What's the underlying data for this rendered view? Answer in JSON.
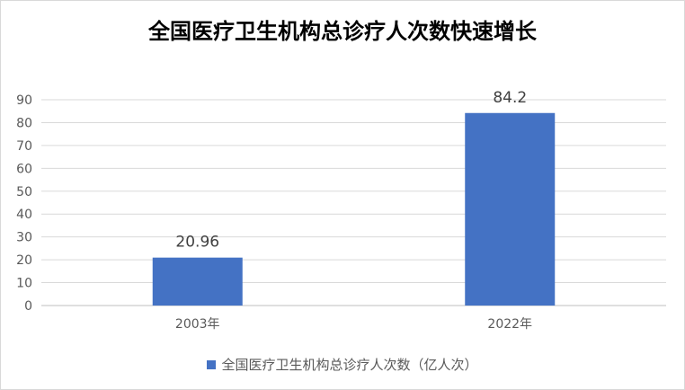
{
  "chart_data": {
    "type": "bar",
    "title": "全国医疗卫生机构总诊疗人次数快速增长",
    "categories": [
      "2003年",
      "2022年"
    ],
    "series": [
      {
        "name": "全国医疗卫生机构总诊疗人次数（亿人次）",
        "values": [
          20.96,
          84.2
        ],
        "labels": [
          "20.96",
          "84.2"
        ]
      }
    ],
    "ylim": [
      0,
      90
    ],
    "yticks": [
      0,
      10,
      20,
      30,
      40,
      50,
      60,
      70,
      80,
      90
    ],
    "grid": true,
    "legend": "bottom",
    "colors": {
      "bar": "#4472C4",
      "grid": "#d9d9d9"
    }
  }
}
